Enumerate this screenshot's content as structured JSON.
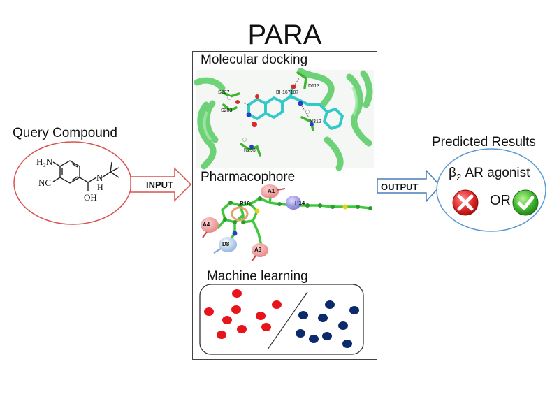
{
  "title": "PARA",
  "query": {
    "label": "Query Compound",
    "atoms": {
      "amine": "H₂N",
      "nitrile": "NC",
      "hydroxyl": "OH",
      "n": "N",
      "h": "H"
    }
  },
  "input_arrow": {
    "label": "INPUT"
  },
  "output_arrow": {
    "label": "OUTPUT"
  },
  "methods": {
    "docking": {
      "label": "Molecular docking",
      "residues": [
        "D113",
        "S207",
        "BI-167107",
        "S203",
        "N312",
        "N293"
      ]
    },
    "pharmacophore": {
      "label": "Pharmacophore",
      "features": [
        "A1",
        "R16",
        "P14",
        "A4",
        "D8",
        "A3"
      ]
    },
    "ml": {
      "label": "Machine learning",
      "class_colors": {
        "positive": "#e8141c",
        "negative": "#0a2a6b"
      }
    }
  },
  "result": {
    "label": "Predicted Results",
    "beta": "β",
    "beta_sub": "2",
    "agonist": " AR agonist",
    "or": "OR"
  },
  "colors": {
    "input_arrow": "#d9534f",
    "output_arrow": "#4a7fb5",
    "query_ellipse": "#d9534f",
    "result_ellipse": "#5b9bd5",
    "helix": "#5fcf6a",
    "ligand": "#33c9c9",
    "pharm_chain": "#3fc83f"
  }
}
